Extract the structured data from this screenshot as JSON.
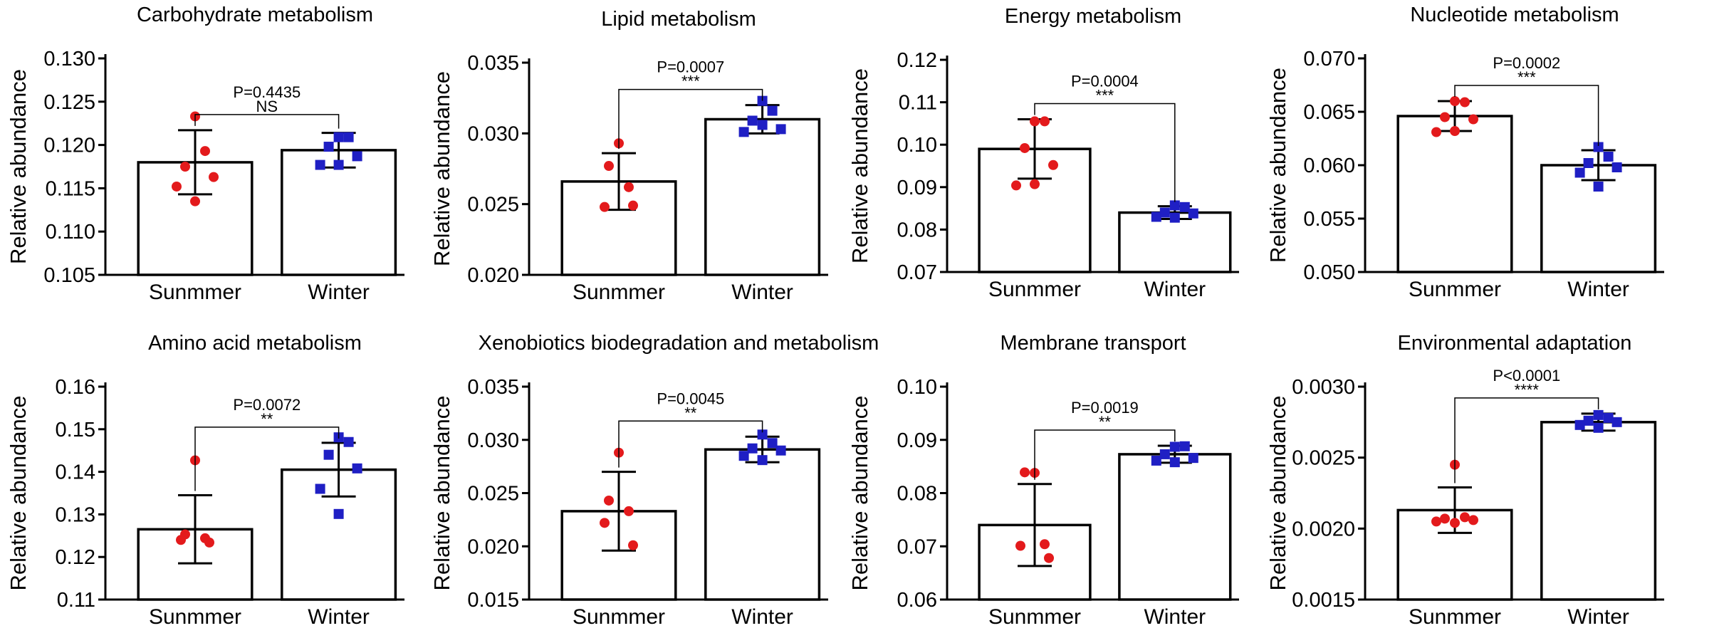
{
  "chart_data": [
    {
      "type": "bar",
      "title": "Carbohydrate metabolism",
      "ylabel": "Relative abundance",
      "categories": [
        "Sunmmer",
        "Winter"
      ],
      "ylim": [
        0.105,
        0.13
      ],
      "yticks": [
        "0.105",
        "0.110",
        "0.115",
        "0.120",
        "0.125",
        "0.130"
      ],
      "series": [
        {
          "name": "Sunmmer",
          "mean": 0.118,
          "sd": 0.0037,
          "points": [
            0.1233,
            0.1193,
            0.1175,
            0.1163,
            0.1152,
            0.1135
          ]
        },
        {
          "name": "Winter",
          "mean": 0.1194,
          "sd": 0.002,
          "points": [
            0.1209,
            0.1209,
            0.1198,
            0.1187,
            0.1177,
            0.1177
          ]
        }
      ],
      "p_value": "P=0.4435",
      "significance": "NS"
    },
    {
      "type": "bar",
      "title": "Lipid metabolism",
      "ylabel": "Relative abundance",
      "categories": [
        "Sunmmer",
        "Winter"
      ],
      "ylim": [
        0.02,
        0.035
      ],
      "yticks": [
        "0.020",
        "0.025",
        "0.030",
        "0.035"
      ],
      "series": [
        {
          "name": "Sunmmer",
          "mean": 0.0266,
          "sd": 0.002,
          "points": [
            0.0293,
            0.0277,
            0.0262,
            0.0248,
            0.0249
          ]
        },
        {
          "name": "Winter",
          "mean": 0.031,
          "sd": 0.001,
          "points": [
            0.0323,
            0.0316,
            0.0309,
            0.0303,
            0.0301,
            0.0306
          ]
        }
      ],
      "p_value": "P=0.0007",
      "significance": "***"
    },
    {
      "type": "bar",
      "title": "Energy metabolism",
      "ylabel": "Relative abundance",
      "categories": [
        "Sunmmer",
        "Winter"
      ],
      "ylim": [
        0.07,
        0.12
      ],
      "yticks": [
        "0.07",
        "0.08",
        "0.09",
        "0.10",
        "0.11",
        "0.12"
      ],
      "series": [
        {
          "name": "Sunmmer",
          "mean": 0.099,
          "sd": 0.007,
          "points": [
            0.1055,
            0.1055,
            0.0992,
            0.0952,
            0.0904,
            0.0907
          ]
        },
        {
          "name": "Winter",
          "mean": 0.084,
          "sd": 0.0015,
          "points": [
            0.0857,
            0.0853,
            0.084,
            0.0838,
            0.083,
            0.0828
          ]
        }
      ],
      "p_value": "P=0.0004",
      "significance": "***"
    },
    {
      "type": "bar",
      "title": "Nucleotide metabolism",
      "ylabel": "Relative abundance",
      "categories": [
        "Sunmmer",
        "Winter"
      ],
      "ylim": [
        0.05,
        0.07
      ],
      "yticks": [
        "0.050",
        "0.055",
        "0.060",
        "0.065",
        "0.070"
      ],
      "series": [
        {
          "name": "Sunmmer",
          "mean": 0.0646,
          "sd": 0.0014,
          "points": [
            0.066,
            0.0659,
            0.0645,
            0.0643,
            0.0631,
            0.0632
          ]
        },
        {
          "name": "Winter",
          "mean": 0.06,
          "sd": 0.0014,
          "points": [
            0.0617,
            0.0608,
            0.0602,
            0.0598,
            0.0593,
            0.058
          ]
        }
      ],
      "p_value": "P=0.0002",
      "significance": "***"
    },
    {
      "type": "bar",
      "title": "Amino acid metabolism",
      "ylabel": "Relative abundance",
      "categories": [
        "Sunmmer",
        "Winter"
      ],
      "ylim": [
        0.11,
        0.16
      ],
      "yticks": [
        "0.11",
        "0.12",
        "0.13",
        "0.14",
        "0.15",
        "0.16"
      ],
      "series": [
        {
          "name": "Sunmmer",
          "mean": 0.1265,
          "sd": 0.008,
          "points": [
            0.1427,
            0.1253,
            0.1244,
            0.124,
            0.1234
          ]
        },
        {
          "name": "Winter",
          "mean": 0.1405,
          "sd": 0.0063,
          "points": [
            0.1481,
            0.147,
            0.144,
            0.1408,
            0.136,
            0.1301
          ]
        }
      ],
      "p_value": "P=0.0072",
      "significance": "**"
    },
    {
      "type": "bar",
      "title": "Xenobiotics biodegradation and  metabolism",
      "ylabel": "Relative abundance",
      "categories": [
        "Sunmmer",
        "Winter"
      ],
      "ylim": [
        0.015,
        0.035
      ],
      "yticks": [
        "0.015",
        "0.020",
        "0.025",
        "0.030",
        "0.035"
      ],
      "series": [
        {
          "name": "Sunmmer",
          "mean": 0.0233,
          "sd": 0.0037,
          "points": [
            0.0288,
            0.0243,
            0.0233,
            0.0222,
            0.0201
          ]
        },
        {
          "name": "Winter",
          "mean": 0.0291,
          "sd": 0.0012,
          "points": [
            0.0305,
            0.0297,
            0.0292,
            0.029,
            0.0285,
            0.0281
          ]
        }
      ],
      "p_value": "P=0.0045",
      "significance": "**"
    },
    {
      "type": "bar",
      "title": "Membrane transport",
      "ylabel": "Relative abundance",
      "categories": [
        "Sunmmer",
        "Winter"
      ],
      "ylim": [
        0.06,
        0.1
      ],
      "yticks": [
        "0.06",
        "0.07",
        "0.08",
        "0.09",
        "0.10"
      ],
      "series": [
        {
          "name": "Sunmmer",
          "mean": 0.074,
          "sd": 0.0077,
          "points": [
            0.0838,
            0.0839,
            0.0704,
            0.0701,
            0.0678
          ]
        },
        {
          "name": "Winter",
          "mean": 0.0873,
          "sd": 0.0016,
          "points": [
            0.0887,
            0.0888,
            0.0873,
            0.0866,
            0.0861,
            0.0858
          ]
        }
      ],
      "p_value": "P=0.0019",
      "significance": "**"
    },
    {
      "type": "bar",
      "title": "Environmental adaptation",
      "ylabel": "Relative abundance",
      "categories": [
        "Sunmmer",
        "Winter"
      ],
      "ylim": [
        0.0015,
        0.003
      ],
      "yticks": [
        "0.0015",
        "0.0020",
        "0.0025",
        "0.0030"
      ],
      "series": [
        {
          "name": "Sunmmer",
          "mean": 0.00213,
          "sd": 0.00016,
          "points": [
            0.00245,
            0.00208,
            0.00207,
            0.00206,
            0.00205,
            0.00204
          ]
        },
        {
          "name": "Winter",
          "mean": 0.00275,
          "sd": 6e-05,
          "points": [
            0.0028,
            0.00278,
            0.00276,
            0.00275,
            0.00273,
            0.00271
          ]
        }
      ],
      "p_value": "P<0.0001",
      "significance": "****"
    }
  ],
  "style": {
    "summer_color": "#e31a1c",
    "winter_color": "#1f1fc4",
    "axis_color": "#000000"
  }
}
